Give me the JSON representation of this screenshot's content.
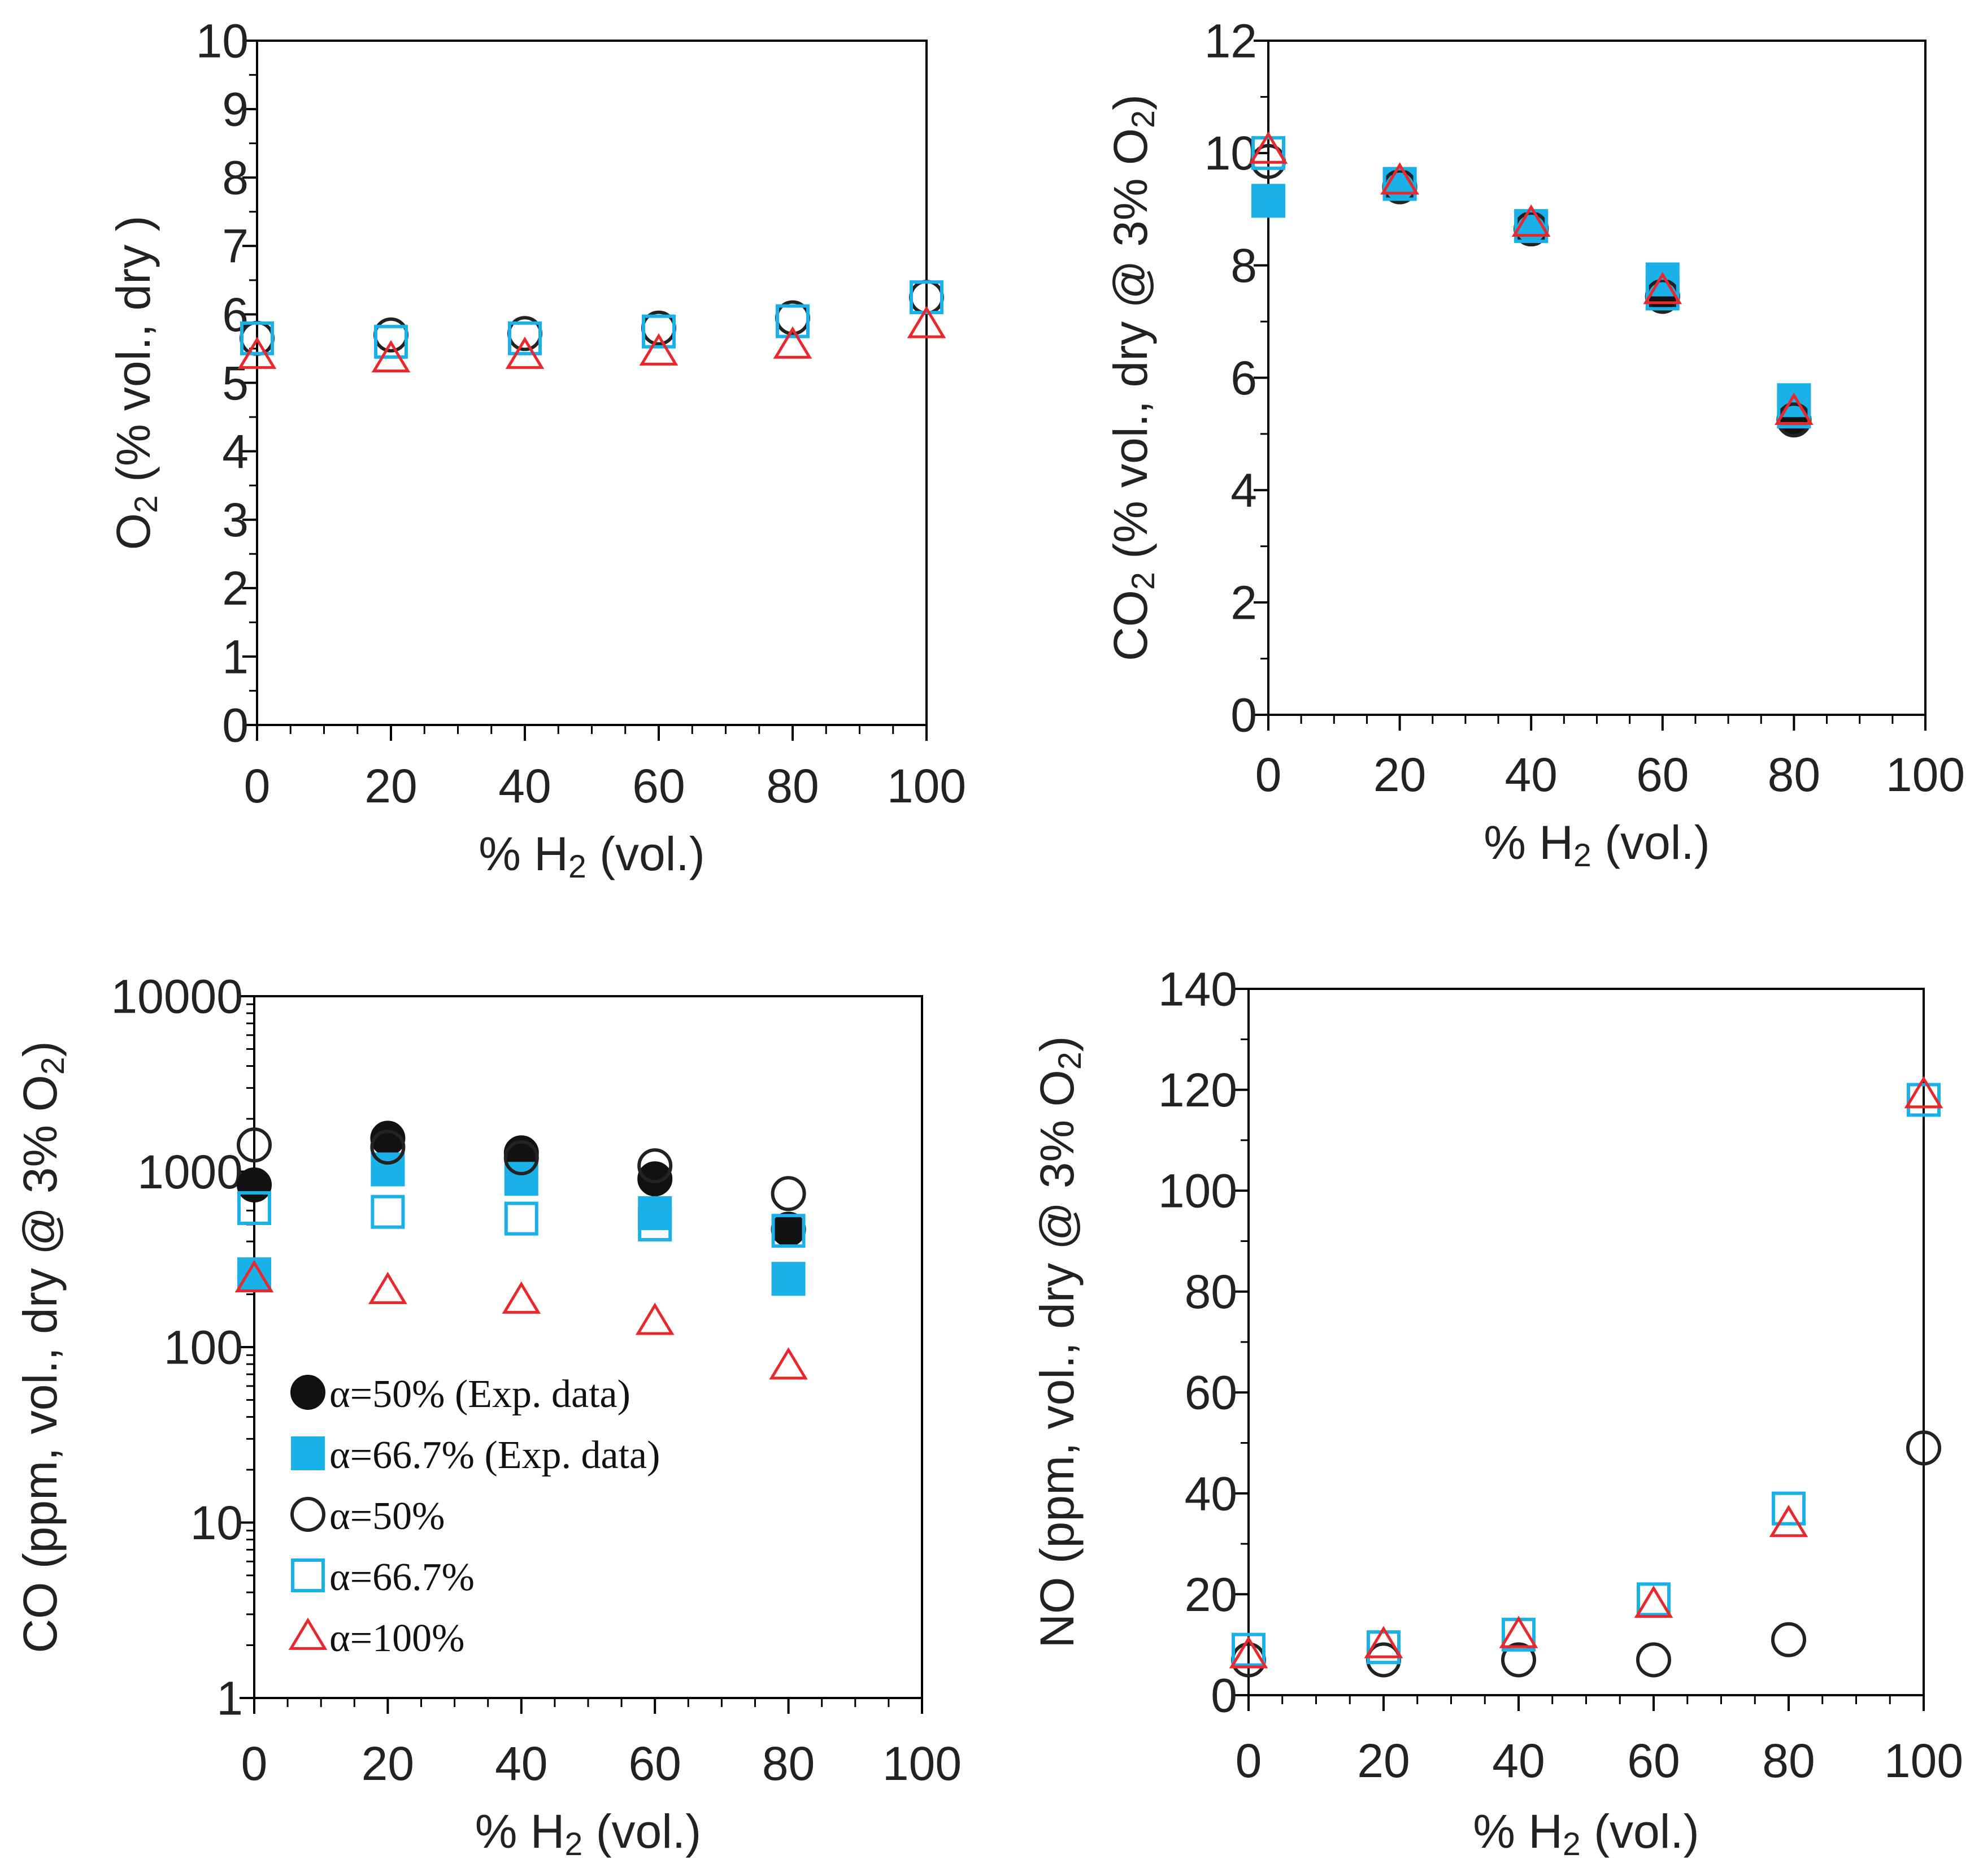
{
  "colors": {
    "exp50": "#111111",
    "exp667": "#1ab0e8",
    "sim50": "#222222",
    "sim667": "#1ab0e8",
    "sim100": "#e8282c",
    "axis": "#000000",
    "text": "#222222"
  },
  "legend": [
    {
      "label": "α=50% (Exp. data)",
      "marker": "circle-filled",
      "color": "#111111"
    },
    {
      "label": "α=66.7% (Exp. data)",
      "marker": "square-filled",
      "color": "#1ab0e8"
    },
    {
      "label": "α=50%",
      "marker": "circle-open",
      "color": "#222222"
    },
    {
      "label": "α=66.7%",
      "marker": "square-open",
      "color": "#1ab0e8"
    },
    {
      "label": "α=100%",
      "marker": "triangle-open",
      "color": "#e8282c"
    }
  ],
  "chart_data": [
    {
      "id": "o2",
      "type": "scatter",
      "ylabel": {
        "base": "O",
        "sub": "2",
        "tail": " (% vol., dry )"
      },
      "xlabel": {
        "base": "% H",
        "sub": "2",
        "tail": " (vol.)"
      },
      "xlim": [
        0,
        100
      ],
      "ylim": [
        0,
        10
      ],
      "yscale": "linear",
      "x_ticks": [
        "0",
        "20",
        "40",
        "60",
        "80",
        "100"
      ],
      "y_ticks": [
        "0",
        "1",
        "2",
        "3",
        "4",
        "5",
        "6",
        "7",
        "8",
        "9",
        "10"
      ],
      "series": [
        {
          "name": "α=50%",
          "marker": "circle-open",
          "x": [
            0,
            20,
            40,
            60,
            80,
            100
          ],
          "y": [
            5.65,
            5.7,
            5.72,
            5.8,
            5.95,
            6.25
          ]
        },
        {
          "name": "α=66.7%",
          "marker": "square-open",
          "x": [
            0,
            20,
            40,
            60,
            80,
            100
          ],
          "y": [
            5.65,
            5.6,
            5.65,
            5.75,
            5.9,
            6.25
          ]
        },
        {
          "name": "α=100%",
          "marker": "triangle-open",
          "x": [
            0,
            20,
            40,
            60,
            80,
            100
          ],
          "y": [
            5.4,
            5.35,
            5.4,
            5.45,
            5.55,
            5.85
          ]
        }
      ]
    },
    {
      "id": "co2",
      "type": "scatter",
      "ylabel": {
        "base": "CO",
        "sub": "2",
        "tail": " (% vol., dry @ 3% O",
        "sub2": "2",
        "tail2": ")"
      },
      "xlabel": {
        "base": "% H",
        "sub": "2",
        "tail": " (vol.)"
      },
      "xlim": [
        0,
        100
      ],
      "ylim": [
        0,
        12
      ],
      "yscale": "linear",
      "x_ticks": [
        "0",
        "20",
        "40",
        "60",
        "80",
        "100"
      ],
      "y_ticks": [
        "0",
        "2",
        "4",
        "6",
        "8",
        "10",
        "12"
      ],
      "series": [
        {
          "name": "α=50% (Exp. data)",
          "marker": "circle-filled",
          "x": [
            20,
            40,
            60,
            80
          ],
          "y": [
            9.4,
            8.65,
            7.45,
            5.25
          ]
        },
        {
          "name": "α=66.7% (Exp. data)",
          "marker": "square-filled",
          "x": [
            0,
            20,
            40,
            60,
            80
          ],
          "y": [
            9.15,
            9.45,
            8.7,
            7.75,
            5.6
          ]
        },
        {
          "name": "α=50%",
          "marker": "circle-open",
          "x": [
            0,
            20,
            40,
            60,
            80
          ],
          "y": [
            9.85,
            9.4,
            8.65,
            7.45,
            5.25
          ]
        },
        {
          "name": "α=66.7%",
          "marker": "square-open",
          "x": [
            0,
            20,
            40,
            60,
            80
          ],
          "y": [
            10.0,
            9.45,
            8.7,
            7.5,
            5.4
          ]
        },
        {
          "name": "α=100%",
          "marker": "triangle-open",
          "x": [
            0,
            20,
            40,
            60,
            80
          ],
          "y": [
            10.05,
            9.5,
            8.75,
            7.55,
            5.4
          ]
        }
      ]
    },
    {
      "id": "co",
      "type": "scatter",
      "ylabel": {
        "base": "CO (ppm, vol., dry @ 3% O",
        "sub": "2",
        "tail": ")"
      },
      "xlabel": {
        "base": "% H",
        "sub": "2",
        "tail": " (vol.)"
      },
      "xlim": [
        0,
        100
      ],
      "ylim": [
        1,
        10000
      ],
      "yscale": "log",
      "x_ticks": [
        "0",
        "20",
        "40",
        "60",
        "80",
        "100"
      ],
      "y_ticks": [
        "1",
        "10",
        "100",
        "1000",
        "10000"
      ],
      "series": [
        {
          "name": "α=50% (Exp. data)",
          "marker": "circle-filled",
          "x": [
            0,
            20,
            40,
            60,
            80
          ],
          "y": [
            840,
            1550,
            1280,
            910,
            470
          ]
        },
        {
          "name": "α=66.7% (Exp. data)",
          "marker": "square-filled",
          "x": [
            0,
            20,
            40,
            60,
            80
          ],
          "y": [
            260,
            1030,
            910,
            580,
            245
          ]
        },
        {
          "name": "α=50%",
          "marker": "circle-open",
          "x": [
            0,
            20,
            40,
            60,
            80
          ],
          "y": [
            1420,
            1380,
            1200,
            1080,
            750
          ]
        },
        {
          "name": "α=66.7%",
          "marker": "square-open",
          "x": [
            0,
            20,
            40,
            60,
            80
          ],
          "y": [
            620,
            590,
            540,
            500,
            460
          ]
        },
        {
          "name": "α=100%",
          "marker": "triangle-open",
          "x": [
            0,
            20,
            40,
            60,
            80
          ],
          "y": [
            245,
            210,
            185,
            140,
            78
          ]
        }
      ]
    },
    {
      "id": "no",
      "type": "scatter",
      "ylabel": {
        "base": "NO (ppm, vol., dry @ 3% O",
        "sub": "2",
        "tail": ")"
      },
      "xlabel": {
        "base": "% H",
        "sub": "2",
        "tail": " (vol.)"
      },
      "xlim": [
        0,
        100
      ],
      "ylim": [
        0,
        140
      ],
      "yscale": "linear",
      "x_ticks": [
        "0",
        "20",
        "40",
        "60",
        "80",
        "100"
      ],
      "y_ticks": [
        "0",
        "20",
        "40",
        "60",
        "80",
        "100",
        "120",
        "140"
      ],
      "series": [
        {
          "name": "α=50%",
          "marker": "circle-open",
          "x": [
            0,
            20,
            40,
            60,
            80,
            100
          ],
          "y": [
            7,
            7,
            7,
            7,
            11,
            49
          ]
        },
        {
          "name": "α=66.7%",
          "marker": "square-open",
          "x": [
            0,
            20,
            40,
            60,
            80,
            100
          ],
          "y": [
            9,
            9.5,
            12,
            19,
            37,
            118
          ]
        },
        {
          "name": "α=100%",
          "marker": "triangle-open",
          "x": [
            0,
            20,
            40,
            60,
            80,
            100
          ],
          "y": [
            8,
            10,
            12,
            18,
            34,
            119
          ]
        }
      ]
    }
  ]
}
